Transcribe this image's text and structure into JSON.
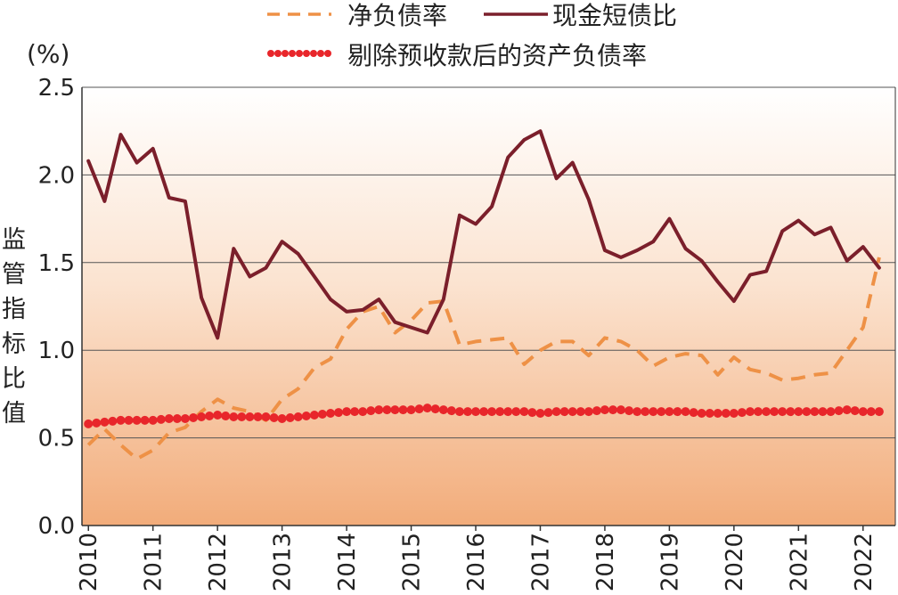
{
  "chart_data": {
    "type": "line",
    "title": "",
    "ylabel": "监管指标比值",
    "yunit": "(%)",
    "xlabel": "",
    "ylim": [
      0,
      2.5
    ],
    "xlim": [
      2009.9,
      2022.5
    ],
    "yticks": [
      "0.0",
      "0.5",
      "1.0",
      "1.5",
      "2.0",
      "2.5"
    ],
    "xticks": [
      "2010",
      "2011",
      "2012",
      "2013",
      "2014",
      "2015",
      "2016",
      "2017",
      "2018",
      "2019",
      "2020",
      "2021",
      "2022"
    ],
    "grid": true,
    "legend_position": "top",
    "background": "gradient from white (top) to light orange (bottom)",
    "series": [
      {
        "name": "净负债率",
        "style": "dashed",
        "color": "#EE9146",
        "x": [
          2010.0,
          2010.25,
          2010.5,
          2010.75,
          2011.0,
          2011.25,
          2011.5,
          2011.75,
          2012.0,
          2012.25,
          2012.5,
          2012.75,
          2013.0,
          2013.25,
          2013.5,
          2013.75,
          2014.0,
          2014.25,
          2014.5,
          2014.75,
          2015.0,
          2015.25,
          2015.5,
          2015.75,
          2016.0,
          2016.25,
          2016.5,
          2016.75,
          2017.0,
          2017.25,
          2017.5,
          2017.75,
          2018.0,
          2018.25,
          2018.5,
          2018.75,
          2019.0,
          2019.25,
          2019.5,
          2019.75,
          2020.0,
          2020.25,
          2020.5,
          2020.75,
          2021.0,
          2021.25,
          2021.5,
          2021.75,
          2022.0,
          2022.25
        ],
        "values": [
          0.46,
          0.55,
          0.46,
          0.38,
          0.43,
          0.53,
          0.56,
          0.65,
          0.72,
          0.67,
          0.65,
          0.6,
          0.72,
          0.78,
          0.9,
          0.95,
          1.12,
          1.22,
          1.25,
          1.1,
          1.17,
          1.27,
          1.28,
          1.03,
          1.05,
          1.06,
          1.07,
          0.92,
          1.0,
          1.05,
          1.05,
          0.97,
          1.07,
          1.05,
          1.0,
          0.91,
          0.96,
          0.98,
          0.97,
          0.86,
          0.96,
          0.89,
          0.87,
          0.83,
          0.84,
          0.86,
          0.87,
          1.0,
          1.13,
          1.53
        ]
      },
      {
        "name": "现金短债比",
        "style": "solid",
        "color": "#7B1F2B",
        "x": [
          2010.0,
          2010.25,
          2010.5,
          2010.75,
          2011.0,
          2011.25,
          2011.5,
          2011.75,
          2012.0,
          2012.25,
          2012.5,
          2012.75,
          2013.0,
          2013.25,
          2013.5,
          2013.75,
          2014.0,
          2014.25,
          2014.5,
          2014.75,
          2015.0,
          2015.25,
          2015.5,
          2015.75,
          2016.0,
          2016.25,
          2016.5,
          2016.75,
          2017.0,
          2017.25,
          2017.5,
          2017.75,
          2018.0,
          2018.25,
          2018.5,
          2018.75,
          2019.0,
          2019.25,
          2019.5,
          2019.75,
          2020.0,
          2020.25,
          2020.5,
          2020.75,
          2021.0,
          2021.25,
          2021.5,
          2021.75,
          2022.0,
          2022.25
        ],
        "values": [
          2.08,
          1.85,
          2.23,
          2.07,
          2.15,
          1.87,
          1.85,
          1.3,
          1.07,
          1.58,
          1.42,
          1.47,
          1.62,
          1.55,
          1.42,
          1.29,
          1.22,
          1.23,
          1.29,
          1.16,
          1.13,
          1.1,
          1.29,
          1.77,
          1.72,
          1.82,
          2.1,
          2.2,
          2.25,
          1.98,
          2.07,
          1.86,
          1.57,
          1.53,
          1.57,
          1.62,
          1.75,
          1.58,
          1.51,
          1.39,
          1.28,
          1.43,
          1.45,
          1.68,
          1.74,
          1.66,
          1.7,
          1.51,
          1.59,
          1.47
        ]
      },
      {
        "name": "剔除预收款后的资产负债率",
        "style": "dotted",
        "color": "#E8262B",
        "x": [
          2010.0,
          2010.25,
          2010.5,
          2010.75,
          2011.0,
          2011.25,
          2011.5,
          2011.75,
          2012.0,
          2012.25,
          2012.5,
          2012.75,
          2013.0,
          2013.25,
          2013.5,
          2013.75,
          2014.0,
          2014.25,
          2014.5,
          2014.75,
          2015.0,
          2015.25,
          2015.5,
          2015.75,
          2016.0,
          2016.25,
          2016.5,
          2016.75,
          2017.0,
          2017.25,
          2017.5,
          2017.75,
          2018.0,
          2018.25,
          2018.5,
          2018.75,
          2019.0,
          2019.25,
          2019.5,
          2019.75,
          2020.0,
          2020.25,
          2020.5,
          2020.75,
          2021.0,
          2021.25,
          2021.5,
          2021.75,
          2022.0,
          2022.25
        ],
        "values": [
          0.58,
          0.59,
          0.6,
          0.6,
          0.6,
          0.61,
          0.61,
          0.62,
          0.63,
          0.62,
          0.62,
          0.62,
          0.61,
          0.62,
          0.63,
          0.64,
          0.65,
          0.65,
          0.66,
          0.66,
          0.66,
          0.67,
          0.66,
          0.65,
          0.65,
          0.65,
          0.65,
          0.65,
          0.64,
          0.65,
          0.65,
          0.65,
          0.66,
          0.66,
          0.65,
          0.65,
          0.65,
          0.65,
          0.64,
          0.64,
          0.64,
          0.65,
          0.65,
          0.65,
          0.65,
          0.65,
          0.65,
          0.66,
          0.65,
          0.65
        ]
      }
    ]
  }
}
